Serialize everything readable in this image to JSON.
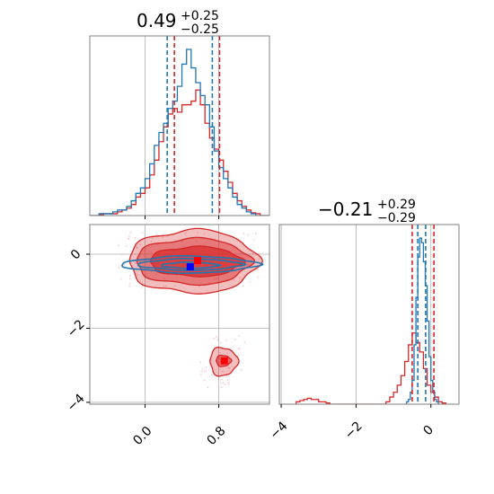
{
  "chart_data": {
    "type": "corner",
    "colors": {
      "blue": "#1f77b4",
      "red": "#d62728",
      "grid": "#b0b0b0",
      "frame": "#808080",
      "blue_marker": "#0000ff",
      "red_marker": "#ff0000"
    },
    "param1": {
      "title_value": "0.49",
      "title_plus": "+0.25",
      "title_minus": "−0.25",
      "xlim": [
        -0.6,
        1.35
      ],
      "ticks": [
        {
          "value": 0.0,
          "label": "0.0"
        },
        {
          "value": 0.8,
          "label": "0.8"
        }
      ],
      "quantiles_blue": [
        0.24,
        0.73
      ],
      "quantiles_red": [
        0.24,
        0.73
      ],
      "blue_hist": {
        "start": -0.6,
        "width": 0.05,
        "heights": [
          0,
          0,
          0.01,
          0.01,
          0.01,
          0.02,
          0.03,
          0.03,
          0.05,
          0.08,
          0.12,
          0.15,
          0.2,
          0.28,
          0.38,
          0.45,
          0.5,
          0.58,
          0.62,
          0.7,
          0.82,
          0.9,
          0.8,
          0.72,
          0.65,
          0.6,
          0.48,
          0.35,
          0.26,
          0.2,
          0.15,
          0.1,
          0.06,
          0.04,
          0.02,
          0.01,
          0,
          0,
          0
        ]
      },
      "red_hist": {
        "start": -0.6,
        "width": 0.05,
        "heights": [
          0,
          0,
          0.005,
          0.01,
          0.01,
          0.01,
          0.02,
          0.03,
          0.04,
          0.06,
          0.1,
          0.12,
          0.15,
          0.22,
          0.3,
          0.4,
          0.48,
          0.55,
          0.58,
          0.56,
          0.6,
          0.6,
          0.62,
          0.68,
          0.6,
          0.5,
          0.42,
          0.36,
          0.3,
          0.24,
          0.18,
          0.12,
          0.08,
          0.05,
          0.03,
          0.015,
          0.01,
          0,
          0
        ]
      }
    },
    "param2": {
      "title_value": "−0.21",
      "title_plus": "+0.29",
      "title_minus": "−0.29",
      "xlim": [
        -4.05,
        0.75
      ],
      "ticks": [
        {
          "value": -4,
          "label": "−4"
        },
        {
          "value": -2,
          "label": "−2"
        },
        {
          "value": 0,
          "label": "0"
        }
      ],
      "quantiles_blue": [
        -0.35,
        -0.14
      ],
      "quantiles_red": [
        -0.5,
        0.08
      ],
      "blue_hist": {
        "start": -0.7,
        "width": 0.05,
        "heights": [
          0,
          0.01,
          0.02,
          0.05,
          0.1,
          0.25,
          0.45,
          0.62,
          0.7,
          0.68,
          0.6,
          0.5,
          0.35,
          0.2,
          0.1,
          0.05,
          0.02,
          0.01,
          0
        ]
      },
      "red_hist": {
        "start": -3.6,
        "width": 0.1,
        "heights": [
          0.01,
          0.015,
          0.02,
          0.025,
          0.02,
          0.02,
          0.01,
          0.01,
          0.005,
          0,
          0,
          0,
          0,
          0,
          0,
          0,
          0,
          0,
          0,
          0,
          0,
          0,
          0,
          0,
          0.01,
          0.03,
          0.05,
          0.08,
          0.12,
          0.18,
          0.25,
          0.3,
          0.26,
          0.22,
          0.15,
          0.08,
          0.05,
          0.03,
          0.01,
          0.005
        ]
      }
    },
    "joint": {
      "ylim": [
        -4.05,
        0.8
      ],
      "yticks": [
        {
          "value": 0,
          "label": "0"
        },
        {
          "value": -2,
          "label": "−2"
        },
        {
          "value": -4,
          "label": "−4"
        }
      ],
      "blue_point": [
        0.49,
        -0.34
      ],
      "red_points": [
        [
          0.57,
          -0.17
        ],
        [
          0.86,
          -2.88
        ]
      ],
      "red_main_contours": [
        {
          "cx": 0.52,
          "cy": -0.2,
          "rx": 0.7,
          "ry": 0.85,
          "opacity": 0.3
        },
        {
          "cx": 0.52,
          "cy": -0.2,
          "rx": 0.62,
          "ry": 0.62,
          "opacity": 0.45
        },
        {
          "cx": 0.55,
          "cy": -0.2,
          "rx": 0.5,
          "ry": 0.4,
          "opacity": 0.7
        }
      ],
      "red_secondary_contours": [
        {
          "cx": 0.85,
          "cy": -2.9,
          "rx": 0.15,
          "ry": 0.38,
          "opacity": 0.3
        },
        {
          "cx": 0.85,
          "cy": -2.88,
          "rx": 0.08,
          "ry": 0.15,
          "opacity": 0.55
        }
      ],
      "blue_contours": [
        {
          "cx": 0.49,
          "cy": -0.28,
          "rx": 0.72,
          "ry": 0.22
        },
        {
          "cx": 0.49,
          "cy": -0.28,
          "rx": 0.55,
          "ry": 0.15
        },
        {
          "cx": 0.49,
          "cy": -0.3,
          "rx": 0.3,
          "ry": 0.08
        }
      ]
    }
  }
}
